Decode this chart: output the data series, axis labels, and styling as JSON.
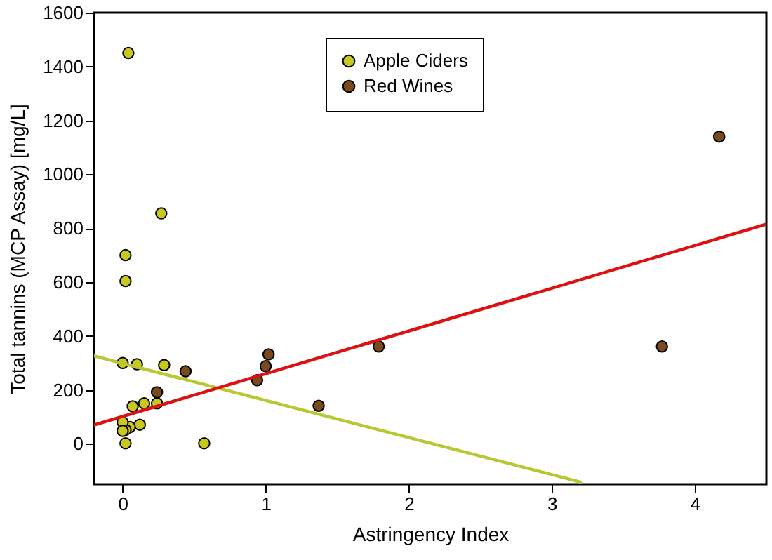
{
  "chart_data": {
    "type": "scatter",
    "xlabel": "Astringency Index",
    "ylabel": "Total tannins (MCP Assay) [mg/L]",
    "xlim": [
      -0.2,
      4.5
    ],
    "xticks": [
      0,
      1,
      2,
      3,
      4
    ],
    "ylim": [
      -150,
      1600
    ],
    "yticks": [
      0,
      200,
      400,
      600,
      800,
      1000,
      1200,
      1400,
      1600
    ],
    "grid": false,
    "legend": "top",
    "series": [
      {
        "name": "Apple Ciders",
        "marker": "circle",
        "color": "#c8c81e",
        "x": [
          0.04,
          0.27,
          0.02,
          0.02,
          0,
          0.1,
          0.29,
          0.24,
          0.15,
          0.07,
          0.12,
          0.05,
          0.02,
          0,
          0,
          0.02,
          0.57
        ],
        "values": [
          1450,
          855,
          700,
          604,
          300,
          295,
          292,
          150,
          150,
          139,
          71,
          62,
          52,
          80,
          48,
          2,
          2
        ]
      },
      {
        "name": "Red Wines",
        "marker": "circle",
        "color": "#7a4a1e",
        "x": [
          0.24,
          0.44,
          0.94,
          1.0,
          1.02,
          1.37,
          1.79,
          3.77,
          4.17
        ],
        "values": [
          191,
          269,
          236,
          288,
          332,
          141,
          361,
          361,
          1140
        ]
      },
      {
        "type": "line",
        "color": "#b8c832",
        "x": [
          -0.2,
          3.2
        ],
        "values": [
          326,
          -142
        ]
      },
      {
        "type": "line",
        "color": "#dd1111",
        "x": [
          -0.2,
          4.5
        ],
        "values": [
          70,
          815
        ]
      }
    ]
  }
}
